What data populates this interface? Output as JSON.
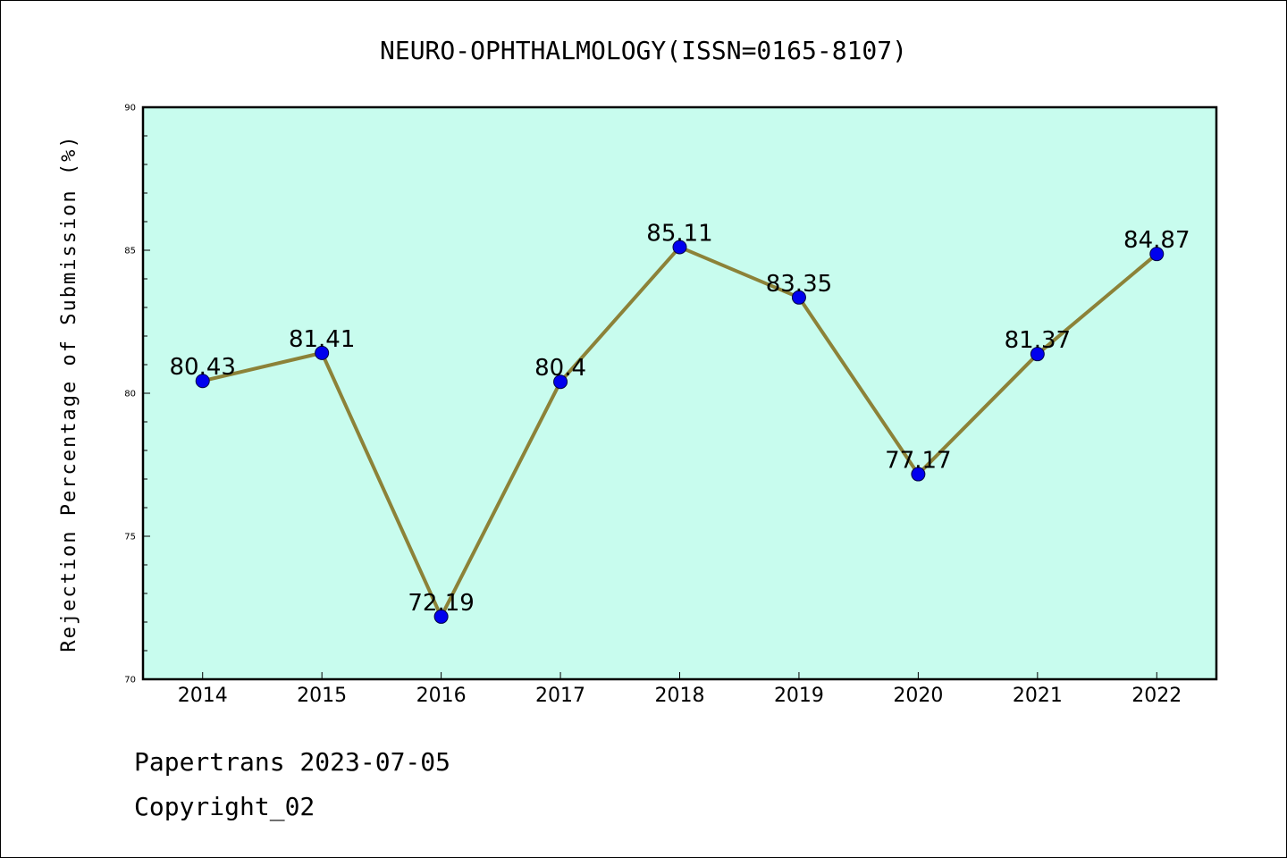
{
  "chart_data": {
    "type": "line",
    "title": "NEURO-OPHTHALMOLOGY(ISSN=0165-8107)",
    "xlabel": "",
    "ylabel": "Rejection Percentage of Submission (%)",
    "ylim": [
      70,
      90
    ],
    "y_ticks": [
      "70",
      "75",
      "80",
      "85",
      "90"
    ],
    "categories": [
      "2014",
      "2015",
      "2016",
      "2017",
      "2018",
      "2019",
      "2020",
      "2021",
      "2022"
    ],
    "values": [
      80.43,
      81.41,
      72.19,
      80.4,
      85.11,
      83.35,
      77.17,
      81.37,
      84.87
    ],
    "data_labels": [
      "80.43",
      "81.41",
      "72.19",
      "80.4",
      "85.11",
      "83.35",
      "77.17",
      "81.37",
      "84.87"
    ],
    "grid": false,
    "colors": {
      "plot_background": "#c8fcee",
      "line": "#8c8238",
      "marker": "#0000ee"
    }
  },
  "footer": {
    "source": "Papertrans 2023-07-05",
    "copyright": "Copyright_02"
  }
}
